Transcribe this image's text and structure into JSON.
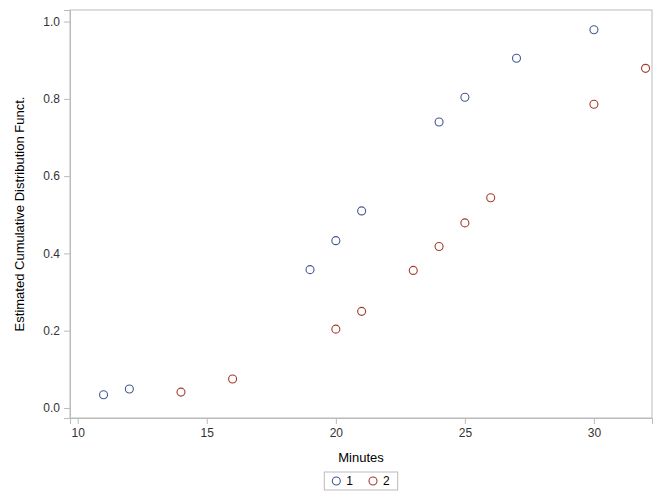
{
  "chart_data": {
    "type": "scatter",
    "x_label": "Minutes",
    "y_label": "Estimated Cumulative Distribution Funct.",
    "xlim": [
      9.7,
      32.25
    ],
    "ylim": [
      -0.026,
      1.03
    ],
    "xticks": [
      10,
      15,
      20,
      25,
      30
    ],
    "yticks": [
      {
        "value": 0,
        "label": "0.0"
      },
      0.2,
      0.4,
      0.6,
      0.8,
      {
        "value": 1,
        "label": "1.0"
      }
    ],
    "legend": "bottom",
    "marker": "open-circle",
    "series": [
      {
        "name": "1",
        "color": "#445694",
        "x": [
          11,
          12,
          19,
          20,
          21,
          24,
          25,
          27,
          30
        ],
        "values": [
          0.034,
          0.049,
          0.358,
          0.433,
          0.51,
          0.74,
          0.804,
          0.905,
          0.979
        ]
      },
      {
        "name": "2",
        "color": "#A23A2E",
        "x": [
          14,
          16,
          20,
          21,
          23,
          24,
          25,
          26,
          30,
          32
        ],
        "values": [
          0.041,
          0.075,
          0.204,
          0.25,
          0.356,
          0.418,
          0.479,
          0.544,
          0.786,
          0.879
        ]
      }
    ]
  }
}
